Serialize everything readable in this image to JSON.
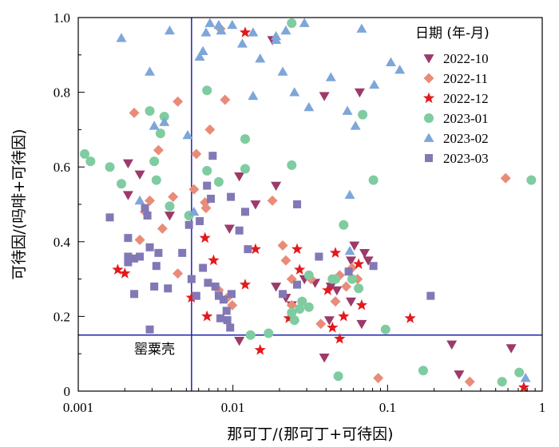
{
  "chart_data": {
    "type": "scatter",
    "xscale": "log",
    "xlim": [
      0.001,
      1
    ],
    "ylim": [
      0,
      1
    ],
    "xlabel": "那可丁/(那可丁+可待因)",
    "ylabel": "可待因/(吗啡+可待因)",
    "x_ticks": [
      "0.001",
      "0.01",
      "0.1",
      "1"
    ],
    "y_ticks": [
      "0",
      "0.2",
      "0.4",
      "0.6",
      "0.8",
      "1.0"
    ],
    "legend_title": "日期 (年-月)",
    "legend_position": "top-right",
    "reference_lines": {
      "x": 0.0054,
      "y": 0.15,
      "color": "#1f24a8"
    },
    "annotation": "罂粟壳",
    "series": [
      {
        "name": "2022-10",
        "marker": "triangle-down",
        "color": "#9c3a6a",
        "points": [
          [
            0.0021,
            0.61
          ],
          [
            0.0025,
            0.58
          ],
          [
            0.0021,
            0.525
          ],
          [
            0.0039,
            0.47
          ],
          [
            0.011,
            0.575
          ],
          [
            0.0095,
            0.435
          ],
          [
            0.014,
            0.5
          ],
          [
            0.019,
            0.55
          ],
          [
            0.022,
            0.25
          ],
          [
            0.019,
            0.28
          ],
          [
            0.024,
            0.23
          ],
          [
            0.029,
            0.3
          ],
          [
            0.034,
            0.29
          ],
          [
            0.039,
            0.79
          ],
          [
            0.043,
            0.28
          ],
          [
            0.047,
            0.27
          ],
          [
            0.058,
            0.35
          ],
          [
            0.061,
            0.39
          ],
          [
            0.066,
            0.8
          ],
          [
            0.071,
            0.37
          ],
          [
            0.075,
            0.35
          ],
          [
            0.068,
            0.18
          ],
          [
            0.058,
            0.24
          ],
          [
            0.039,
            0.09
          ],
          [
            0.018,
            0.94
          ],
          [
            0.011,
            0.135
          ],
          [
            0.042,
            0.19
          ],
          [
            0.26,
            0.125
          ],
          [
            0.29,
            0.045
          ],
          [
            0.63,
            0.115
          ]
        ]
      },
      {
        "name": "2022-11",
        "marker": "diamond",
        "color": "#e88c78",
        "points": [
          [
            0.0023,
            0.745
          ],
          [
            0.0044,
            0.775
          ],
          [
            0.0033,
            0.645
          ],
          [
            0.0029,
            0.51
          ],
          [
            0.0041,
            0.52
          ],
          [
            0.0027,
            0.48
          ],
          [
            0.0025,
            0.405
          ],
          [
            0.0035,
            0.435
          ],
          [
            0.0044,
            0.315
          ],
          [
            0.0058,
            0.635
          ],
          [
            0.0056,
            0.54
          ],
          [
            0.0066,
            0.505
          ],
          [
            0.0071,
            0.7
          ],
          [
            0.0067,
            0.49
          ],
          [
            0.0089,
            0.78
          ],
          [
            0.0081,
            0.27
          ],
          [
            0.0092,
            0.25
          ],
          [
            0.0099,
            0.23
          ],
          [
            0.0083,
            0.97
          ],
          [
            0.018,
            0.51
          ],
          [
            0.021,
            0.39
          ],
          [
            0.022,
            0.35
          ],
          [
            0.024,
            0.23
          ],
          [
            0.024,
            0.3
          ],
          [
            0.032,
            0.3
          ],
          [
            0.037,
            0.18
          ],
          [
            0.046,
            0.24
          ],
          [
            0.049,
            0.31
          ],
          [
            0.054,
            0.28
          ],
          [
            0.059,
            0.33
          ],
          [
            0.064,
            0.3
          ],
          [
            0.087,
            0.035
          ],
          [
            0.34,
            0.025
          ],
          [
            0.58,
            0.57
          ]
        ]
      },
      {
        "name": "2022-12",
        "marker": "star",
        "color": "#e31a1c",
        "points": [
          [
            0.0018,
            0.325
          ],
          [
            0.002,
            0.315
          ],
          [
            0.0054,
            0.25
          ],
          [
            0.0066,
            0.41
          ],
          [
            0.0068,
            0.2
          ],
          [
            0.0075,
            0.35
          ],
          [
            0.012,
            0.285
          ],
          [
            0.012,
            0.96
          ],
          [
            0.014,
            0.38
          ],
          [
            0.015,
            0.11
          ],
          [
            0.023,
            0.195
          ],
          [
            0.026,
            0.38
          ],
          [
            0.027,
            0.325
          ],
          [
            0.041,
            0.27
          ],
          [
            0.044,
            0.17
          ],
          [
            0.046,
            0.37
          ],
          [
            0.049,
            0.14
          ],
          [
            0.052,
            0.2
          ],
          [
            0.065,
            0.34
          ],
          [
            0.068,
            0.23
          ],
          [
            0.14,
            0.195
          ],
          [
            0.76,
            0.01
          ]
        ]
      },
      {
        "name": "2023-01",
        "marker": "circle",
        "color": "#7fcca0",
        "points": [
          [
            0.0011,
            0.635
          ],
          [
            0.0012,
            0.615
          ],
          [
            0.0016,
            0.6
          ],
          [
            0.0019,
            0.555
          ],
          [
            0.0029,
            0.75
          ],
          [
            0.0031,
            0.615
          ],
          [
            0.0032,
            0.565
          ],
          [
            0.0034,
            0.69
          ],
          [
            0.0036,
            0.735
          ],
          [
            0.0052,
            0.47
          ],
          [
            0.0068,
            0.805
          ],
          [
            0.0068,
            0.59
          ],
          [
            0.0039,
            0.495
          ],
          [
            0.0081,
            0.56
          ],
          [
            0.012,
            0.675
          ],
          [
            0.012,
            0.595
          ],
          [
            0.013,
            0.15
          ],
          [
            0.017,
            0.155
          ],
          [
            0.024,
            0.985
          ],
          [
            0.024,
            0.605
          ],
          [
            0.025,
            0.19
          ],
          [
            0.024,
            0.21
          ],
          [
            0.027,
            0.22
          ],
          [
            0.028,
            0.24
          ],
          [
            0.031,
            0.225
          ],
          [
            0.031,
            0.31
          ],
          [
            0.044,
            0.3
          ],
          [
            0.046,
            0.3
          ],
          [
            0.048,
            0.04
          ],
          [
            0.052,
            0.445
          ],
          [
            0.059,
            0.3
          ],
          [
            0.065,
            0.275
          ],
          [
            0.069,
            0.74
          ],
          [
            0.081,
            0.565
          ],
          [
            0.097,
            0.165
          ],
          [
            0.17,
            0.055
          ],
          [
            0.55,
            0.025
          ],
          [
            0.71,
            0.05
          ],
          [
            0.85,
            0.565
          ]
        ]
      },
      {
        "name": "2023-02",
        "marker": "triangle-up",
        "color": "#7ea6d8",
        "points": [
          [
            0.0019,
            0.945
          ],
          [
            0.0029,
            0.855
          ],
          [
            0.0025,
            0.51
          ],
          [
            0.0031,
            0.71
          ],
          [
            0.0036,
            0.72
          ],
          [
            0.0039,
            0.965
          ],
          [
            0.0051,
            0.685
          ],
          [
            0.0056,
            0.48
          ],
          [
            0.0061,
            0.895
          ],
          [
            0.0064,
            0.91
          ],
          [
            0.0067,
            0.96
          ],
          [
            0.0071,
            0.985
          ],
          [
            0.0081,
            0.98
          ],
          [
            0.0084,
            0.965
          ],
          [
            0.0099,
            0.98
          ],
          [
            0.0115,
            0.93
          ],
          [
            0.0135,
            0.96
          ],
          [
            0.015,
            0.89
          ],
          [
            0.019,
            0.95
          ],
          [
            0.021,
            0.855
          ],
          [
            0.019,
            0.94
          ],
          [
            0.022,
            0.965
          ],
          [
            0.025,
            0.8
          ],
          [
            0.029,
            0.985
          ],
          [
            0.031,
            0.76
          ],
          [
            0.043,
            0.84
          ],
          [
            0.055,
            0.75
          ],
          [
            0.057,
            0.525
          ],
          [
            0.057,
            0.375
          ],
          [
            0.062,
            0.71
          ],
          [
            0.068,
            0.97
          ],
          [
            0.082,
            0.82
          ],
          [
            0.105,
            0.88
          ],
          [
            0.12,
            0.86
          ],
          [
            0.78,
            0.035
          ],
          [
            0.0135,
            0.79
          ]
        ]
      },
      {
        "name": "2023-03",
        "marker": "square",
        "color": "#8378b6",
        "points": [
          [
            0.0016,
            0.465
          ],
          [
            0.0021,
            0.41
          ],
          [
            0.0021,
            0.36
          ],
          [
            0.0023,
            0.355
          ],
          [
            0.0021,
            0.345
          ],
          [
            0.0023,
            0.26
          ],
          [
            0.0025,
            0.36
          ],
          [
            0.0027,
            0.49
          ],
          [
            0.0028,
            0.47
          ],
          [
            0.0029,
            0.385
          ],
          [
            0.0032,
            0.335
          ],
          [
            0.0031,
            0.28
          ],
          [
            0.0033,
            0.37
          ],
          [
            0.0038,
            0.275
          ],
          [
            0.0029,
            0.165
          ],
          [
            0.0047,
            0.37
          ],
          [
            0.0052,
            0.445
          ],
          [
            0.0054,
            0.3
          ],
          [
            0.0058,
            0.255
          ],
          [
            0.0061,
            0.455
          ],
          [
            0.0064,
            0.33
          ],
          [
            0.0068,
            0.55
          ],
          [
            0.0072,
            0.515
          ],
          [
            0.0074,
            0.63
          ],
          [
            0.0069,
            0.29
          ],
          [
            0.0077,
            0.28
          ],
          [
            0.0081,
            0.255
          ],
          [
            0.0087,
            0.245
          ],
          [
            0.0091,
            0.215
          ],
          [
            0.0092,
            0.19
          ],
          [
            0.0096,
            0.17
          ],
          [
            0.0097,
            0.52
          ],
          [
            0.0083,
            0.195
          ],
          [
            0.0098,
            0.26
          ],
          [
            0.011,
            0.43
          ],
          [
            0.012,
            0.48
          ],
          [
            0.0125,
            0.38
          ],
          [
            0.021,
            0.26
          ],
          [
            0.026,
            0.5
          ],
          [
            0.026,
            0.285
          ],
          [
            0.036,
            0.36
          ],
          [
            0.056,
            0.32
          ],
          [
            0.081,
            0.335
          ],
          [
            0.19,
            0.255
          ]
        ]
      }
    ]
  }
}
